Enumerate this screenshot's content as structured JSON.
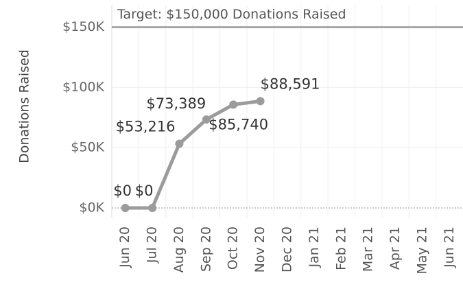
{
  "chart_data": {
    "type": "line",
    "y_axis_label": "Donations Raised",
    "categories": [
      "Jun 20",
      "Jul 20",
      "Aug 20",
      "Sep 20",
      "Oct 20",
      "Nov 20",
      "Dec 20",
      "Jan 21",
      "Feb 21",
      "Mar 21",
      "Apr 21",
      "May 21",
      "Jun 21"
    ],
    "series": [
      {
        "color": "#9b9b9b",
        "values": [
          0,
          0,
          53216,
          73389,
          85740,
          88591,
          null,
          null,
          null,
          null,
          null,
          null,
          null
        ],
        "value_labels": [
          "$0",
          "$0",
          "$53,216",
          "$73,389",
          "$85,740",
          "$88,591",
          null,
          null,
          null,
          null,
          null,
          null,
          null
        ]
      }
    ],
    "ylim": [
      -8000,
      168000
    ],
    "yticks": [
      {
        "value": 0,
        "label": "$0K"
      },
      {
        "value": 50000,
        "label": "$50K"
      },
      {
        "value": 100000,
        "label": "$100K"
      },
      {
        "value": 150000,
        "label": "$150K"
      }
    ],
    "grid": true,
    "reference_line": {
      "value": 150000,
      "label": "Target: $150,000 Donations Raised",
      "color": "#a6a6a6"
    }
  }
}
